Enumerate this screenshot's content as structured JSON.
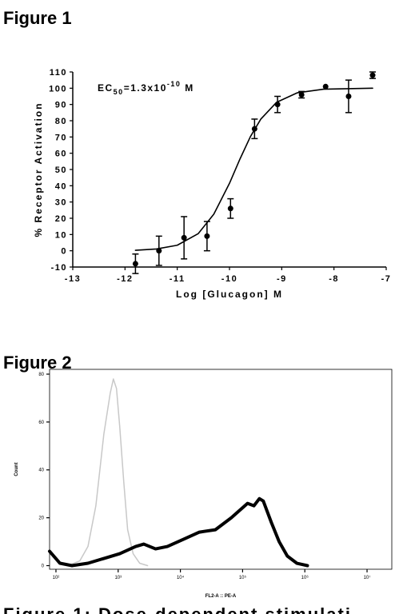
{
  "headings": [
    "Figure 1",
    "Figure 2"
  ],
  "caption": "Figure 1: Dose-dependent stimulati",
  "chart_data": [
    {
      "type": "scatter",
      "annotation": {
        "pre": "EC",
        "sub": "50",
        "mid": "=1.3x10",
        "sup": "-10",
        "post": " M"
      },
      "xlabel": "Log [Glucagon] M",
      "ylabel": "% Receptor Activation",
      "xlim": [
        -13,
        -7
      ],
      "ylim": [
        -10,
        110
      ],
      "xticks": [
        -13,
        -12,
        -11,
        -10,
        -9,
        -8,
        -7
      ],
      "yticks": [
        -10,
        0,
        10,
        20,
        30,
        40,
        50,
        60,
        70,
        80,
        90,
        100,
        110
      ],
      "series": [
        {
          "color": "#000000",
          "x": [
            -11.8,
            -11.35,
            -10.87,
            -10.43,
            -9.98,
            -9.52,
            -9.08,
            -8.62,
            -8.16,
            -7.72,
            -7.26
          ],
          "values": [
            -8,
            0,
            8,
            9,
            26,
            75,
            90,
            96,
            101,
            95,
            108
          ],
          "errors": [
            6,
            9,
            13,
            9,
            6,
            6,
            5,
            2,
            0,
            10,
            2
          ]
        }
      ],
      "fit": {
        "color": "#000000",
        "x": [
          -11.8,
          -11.4,
          -11.0,
          -10.6,
          -10.3,
          -10.0,
          -9.8,
          -9.6,
          -9.4,
          -9.1,
          -8.7,
          -8.2,
          -7.26
        ],
        "values": [
          0.3,
          1.1,
          3.4,
          10.5,
          22.5,
          41.5,
          56.4,
          70.2,
          81,
          91.3,
          97.2,
          99.4,
          100
        ]
      }
    },
    {
      "type": "line",
      "log_x": true,
      "xlabel": "FL2-A :: PE-A",
      "ylabel": "Count",
      "xlim": [
        79,
        25000000
      ],
      "ylim": [
        -1.5,
        82
      ],
      "xticks": [
        {
          "value": 100,
          "label": "10²"
        },
        {
          "value": 1000,
          "label": "10³"
        },
        {
          "value": 10000,
          "label": "10⁴"
        },
        {
          "value": 100000,
          "label": "10⁵"
        },
        {
          "value": 1000000,
          "label": "10⁶"
        },
        {
          "value": 10000000,
          "label": "10⁷"
        }
      ],
      "yticks": [
        0,
        20,
        40,
        60,
        80
      ],
      "series": [
        {
          "color": "#c8c8c8",
          "width": 1.5,
          "x": [
            155,
            242,
            327,
            438,
            589,
            745,
            837,
            940,
            1060,
            1230,
            1420,
            1740,
            2220,
            2970
          ],
          "values": [
            0,
            2,
            8,
            25,
            55,
            72,
            78,
            74,
            58,
            35,
            15,
            5,
            1,
            0
          ]
        },
        {
          "color": "#000000",
          "width": 4,
          "x": [
            79,
            116,
            181,
            327,
            589,
            1060,
            1910,
            2580,
            3990,
            6170,
            11200,
            20200,
            36500,
            65800,
            88800,
            120000,
            152000,
            186000,
            215000,
            290000,
            387000,
            523000,
            744000,
            1100000
          ],
          "values": [
            6,
            1,
            0,
            1,
            3,
            5,
            8,
            9,
            7,
            8,
            11,
            14,
            15,
            20,
            23,
            26,
            25,
            28,
            27,
            18,
            10,
            4,
            1,
            0
          ]
        }
      ]
    }
  ]
}
